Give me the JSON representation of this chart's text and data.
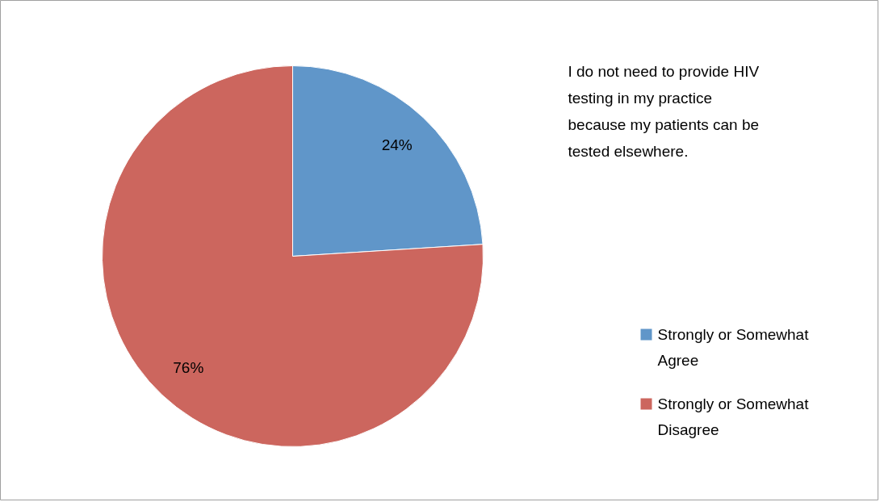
{
  "chart_data": {
    "type": "pie",
    "title": "I do not need to provide HIV testing in my practice because my patients can be tested elsewhere.",
    "categories": [
      "Strongly or Somewhat Agree",
      "Strongly or Somewhat Disagree"
    ],
    "values": [
      24,
      76
    ],
    "colors": [
      "#6096c9",
      "#cc665e"
    ],
    "value_labels": [
      "24%",
      "76%"
    ],
    "legend": "right"
  }
}
